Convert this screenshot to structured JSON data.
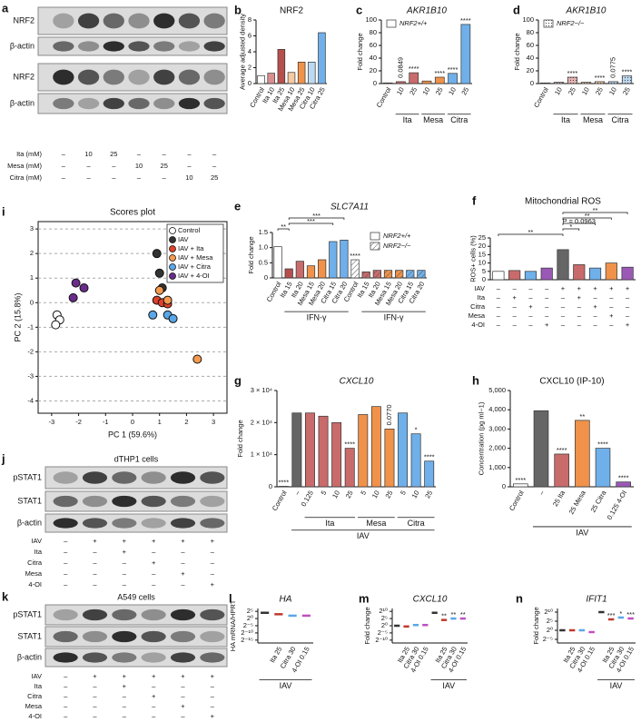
{
  "blots": [
    {
      "panel": "a",
      "rows": [
        "NRF2",
        "β-actin",
        "NRF2",
        "β-actin"
      ],
      "conditions": [
        {
          "name": "Ita (mM)",
          "cells": [
            "–",
            "10",
            "25",
            "–",
            "–",
            "–",
            "–"
          ]
        },
        {
          "name": "Mesa (mM)",
          "cells": [
            "–",
            "–",
            "–",
            "10",
            "25",
            "–",
            "–"
          ]
        },
        {
          "name": "Citra (mM)",
          "cells": [
            "–",
            "–",
            "–",
            "–",
            "–",
            "10",
            "25"
          ]
        }
      ]
    },
    {
      "panel": "j",
      "title": "dTHP1 cells",
      "rows": [
        "pSTAT1",
        "STAT1",
        "β-actin"
      ],
      "conditions": [
        {
          "name": "IAV",
          "cells": [
            "–",
            "+",
            "+",
            "+",
            "+",
            "+"
          ]
        },
        {
          "name": "Ita",
          "cells": [
            "–",
            "–",
            "+",
            "–",
            "–",
            "–"
          ]
        },
        {
          "name": "Citra",
          "cells": [
            "–",
            "–",
            "–",
            "+",
            "–",
            "–"
          ]
        },
        {
          "name": "Mesa",
          "cells": [
            "–",
            "–",
            "–",
            "–",
            "+",
            "–"
          ]
        },
        {
          "name": "4-OI",
          "cells": [
            "–",
            "–",
            "–",
            "–",
            "–",
            "+"
          ]
        }
      ]
    },
    {
      "panel": "k",
      "title": "A549 cells",
      "rows": [
        "pSTAT1",
        "STAT1",
        "β-actin"
      ],
      "conditions": [
        {
          "name": "IAV",
          "cells": [
            "–",
            "+",
            "+",
            "+",
            "+",
            "+"
          ]
        },
        {
          "name": "Ita",
          "cells": [
            "–",
            "–",
            "+",
            "–",
            "–",
            "–"
          ]
        },
        {
          "name": "Citra",
          "cells": [
            "–",
            "–",
            "–",
            "+",
            "–",
            "–"
          ]
        },
        {
          "name": "Mesa",
          "cells": [
            "–",
            "–",
            "–",
            "–",
            "+",
            "–"
          ]
        },
        {
          "name": "4-OI",
          "cells": [
            "–",
            "–",
            "–",
            "–",
            "–",
            "+"
          ]
        }
      ]
    }
  ],
  "chart_data": [
    {
      "panel": "b",
      "type": "bar",
      "title": "NRF2",
      "y_label": "Average adjusted density",
      "categories": [
        "Control",
        "Ita 10",
        "Ita 25",
        "Mesa 10",
        "Mesa 25",
        "Citra 10",
        "Citra 25"
      ],
      "values": [
        1,
        1.3,
        4.3,
        1.4,
        2.7,
        2.7,
        6.4
      ],
      "colors": [
        "#ffffff",
        "#d98f8f",
        "#b5504c",
        "#f7c9a0",
        "#f0924a",
        "#bcd9f2",
        "#6fb0ea"
      ],
      "ylim": [
        0,
        8
      ],
      "yticks": [
        0,
        2,
        4,
        6,
        8
      ]
    },
    {
      "panel": "c",
      "type": "bar",
      "title": "AKR1B10",
      "y_label": "Fold change",
      "categories": [
        "Control",
        "10",
        "25",
        "10",
        "25",
        "10",
        "25"
      ],
      "groups": [
        {
          "label": "Ita",
          "from": 1,
          "to": 2
        },
        {
          "label": "Mesa",
          "from": 3,
          "to": 4
        },
        {
          "label": "Citra",
          "from": 5,
          "to": 6
        }
      ],
      "series": [
        {
          "name": "NRF2+/+",
          "values": [
            1,
            3,
            17,
            4,
            10,
            16,
            93
          ]
        }
      ],
      "colors": [
        "#ffffff",
        "#c96b6b",
        "#c96b6b",
        "#f0924a",
        "#f0924a",
        "#6fb0ea",
        "#6fb0ea"
      ],
      "annotations": [
        null,
        "0.0849",
        "****",
        null,
        "****",
        "****",
        "****"
      ],
      "legend": "top-left",
      "ylim": [
        0,
        100
      ],
      "yticks": [
        0,
        20,
        40,
        60,
        80,
        100
      ]
    },
    {
      "panel": "d",
      "type": "bar",
      "title": "AKR1B10",
      "y_label": "Fold change",
      "categories": [
        "Control",
        "10",
        "25",
        "10",
        "25",
        "10",
        "25"
      ],
      "groups": [
        {
          "label": "Ita",
          "from": 1,
          "to": 2
        },
        {
          "label": "Mesa",
          "from": 3,
          "to": 4
        },
        {
          "label": "Citra",
          "from": 5,
          "to": 6
        }
      ],
      "series": [
        {
          "name": "NRF2−/−",
          "pattern": "dots",
          "values": [
            1,
            2,
            10,
            2,
            3,
            3,
            12
          ]
        }
      ],
      "colors": [
        "#ffffff",
        "#e8b4b4",
        "#e8b4b4",
        "#f7c9a0",
        "#f7c9a0",
        "#bcd9f2",
        "#bcd9f2"
      ],
      "annotations": [
        null,
        null,
        "****",
        null,
        "****",
        "0.0775",
        "****"
      ],
      "legend": "top-left",
      "ylim": [
        0,
        100
      ],
      "yticks": [
        0,
        20,
        40,
        60,
        80,
        100
      ]
    },
    {
      "panel": "i",
      "type": "scatter",
      "title": "Scores plot",
      "x_label": "PC 1 (59.6%)",
      "y_label": "PC 2 (15.8%)",
      "series": [
        {
          "name": "Control",
          "color": "#ffffff",
          "x": [
            -2.8,
            -2.7,
            -2.85
          ],
          "y": [
            -0.5,
            -0.7,
            -0.9
          ]
        },
        {
          "name": "IAV",
          "color": "#333333",
          "x": [
            0.9,
            1.0,
            1.1
          ],
          "y": [
            2.0,
            1.2,
            0.6
          ]
        },
        {
          "name": "IAV + Ita",
          "color": "#e0402a",
          "x": [
            0.9,
            1.1,
            1.3
          ],
          "y": [
            0.1,
            0.0,
            -0.05
          ]
        },
        {
          "name": "IAV + Mesa",
          "color": "#f59a4f",
          "x": [
            1.0,
            1.3,
            2.4
          ],
          "y": [
            0.5,
            0.1,
            -2.3
          ]
        },
        {
          "name": "IAV + Citra",
          "color": "#5aa6e6",
          "x": [
            0.75,
            1.3,
            1.5
          ],
          "y": [
            -0.5,
            -0.5,
            -0.65
          ]
        },
        {
          "name": "IAV + 4-OI",
          "color": "#6a2c8a",
          "x": [
            -2.1,
            -1.8,
            -2.2
          ],
          "y": [
            0.8,
            0.6,
            0.2
          ]
        }
      ],
      "xlim": [
        -3.5,
        3.5
      ],
      "xticks": [
        -3,
        -2,
        -1,
        0,
        1,
        2,
        3
      ],
      "ylim": [
        -4.5,
        3.3
      ],
      "yticks": [
        -4,
        -3,
        -2,
        -1,
        0,
        1,
        2,
        3
      ],
      "grid": true,
      "legend": "top-right"
    },
    {
      "panel": "e",
      "type": "bar",
      "title": "SLC7A11",
      "y_label": "Fold change",
      "categories": [
        "Control",
        "Ita 15",
        "Ita 20",
        "Mesa 15",
        "Mesa 20",
        "Citra 15",
        "Citra 20",
        "Control",
        "Ita 15",
        "Ita 20",
        "Mesa 15",
        "Mesa 20",
        "Citra 15",
        "Citra 20"
      ],
      "series": [
        {
          "name": "NRF2+/+",
          "values": [
            1.03,
            0.3,
            0.55,
            0.4,
            0.6,
            1.2,
            1.25,
            null,
            null,
            null,
            null,
            null,
            null,
            null
          ]
        },
        {
          "name": "NRF2−/−",
          "pattern": "hatch",
          "values": [
            null,
            null,
            null,
            null,
            null,
            null,
            null,
            0.6,
            0.2,
            0.25,
            0.25,
            0.25,
            0.25,
            0.25
          ]
        }
      ],
      "colors": [
        "#ffffff",
        "#b5504c",
        "#c96b6b",
        "#f0924a",
        "#f0924a",
        "#6fb0ea",
        "#6fb0ea",
        "#ffffff",
        "#c96b6b",
        "#c96b6b",
        "#f0924a",
        "#f0924a",
        "#6fb0ea",
        "#6fb0ea"
      ],
      "annotations": [
        null,
        null,
        null,
        null,
        null,
        null,
        null,
        "****",
        null,
        null,
        null,
        null,
        null,
        null
      ],
      "comparisons": [
        {
          "label": "**",
          "from": 0,
          "to": 1
        },
        {
          "label": "***",
          "from": 1,
          "to": 5
        },
        {
          "label": "***",
          "from": 1,
          "to": 6
        }
      ],
      "groups": [
        {
          "label": "IFN-γ",
          "from": 1,
          "to": 6
        },
        {
          "label": "IFN-γ",
          "from": 8,
          "to": 13
        }
      ],
      "legend": "top-right",
      "ylim": [
        0,
        1.5
      ],
      "yticks": [
        0,
        0.5,
        {
          "value": 1,
          "label": "1.0"
        },
        1.5
      ]
    },
    {
      "panel": "f",
      "type": "bar",
      "title": "Mitochondrial ROS",
      "y_label": "ROS+ cells (%)",
      "values": [
        5,
        5.5,
        5,
        7,
        18,
        9,
        7,
        10,
        7.5
      ],
      "colors": [
        "#ffffff",
        "#c96b6b",
        "#6fb0ea",
        "#9b59b6",
        "#666666",
        "#c96b6b",
        "#6fb0ea",
        "#f0924a",
        "#9b59b6"
      ],
      "conditions": [
        {
          "name": "IAV",
          "cells": [
            "–",
            "–",
            "–",
            "–",
            "+",
            "+",
            "+",
            "+",
            "+"
          ]
        },
        {
          "name": "Ita",
          "cells": [
            "–",
            "+",
            "–",
            "–",
            "–",
            "+",
            "–",
            "–",
            "–"
          ]
        },
        {
          "name": "Citra",
          "cells": [
            "–",
            "–",
            "+",
            "–",
            "–",
            "–",
            "+",
            "–",
            "–"
          ]
        },
        {
          "name": "Mesa",
          "cells": [
            "–",
            "–",
            "–",
            "–",
            "–",
            "–",
            "–",
            "+",
            "–"
          ]
        },
        {
          "name": "4-OI",
          "cells": [
            "–",
            "–",
            "–",
            "+",
            "–",
            "–",
            "–",
            "–",
            "+"
          ]
        }
      ],
      "comparisons": [
        {
          "label": "**",
          "from": 0,
          "to": 4
        },
        {
          "label": "*",
          "from": 4,
          "to": 5
        },
        {
          "label": "P = 0.0963",
          "from": 4,
          "to": 6
        },
        {
          "label": "**",
          "from": 4,
          "to": 7
        },
        {
          "label": "**",
          "from": 4,
          "to": 8
        }
      ],
      "ylim": [
        0,
        25
      ],
      "yticks": [
        0,
        5,
        10,
        15,
        20,
        25
      ]
    },
    {
      "panel": "g",
      "type": "bar",
      "title": "CXCL10",
      "y_label": "Fold change",
      "categories": [
        "Control",
        "–",
        "0.125",
        "5",
        "10",
        "25",
        "5",
        "10",
        "25",
        "5",
        "10",
        "25"
      ],
      "values": [
        150,
        23000,
        23000,
        22000,
        20000,
        12000,
        22500,
        25000,
        18000,
        23000,
        16500,
        8000
      ],
      "colors": [
        "#ffffff",
        "#666666",
        "#c96b6b",
        "#c96b6b",
        "#c96b6b",
        "#c96b6b",
        "#f0924a",
        "#f0924a",
        "#f0924a",
        "#6fb0ea",
        "#6fb0ea",
        "#6fb0ea"
      ],
      "annotations": [
        "****",
        null,
        null,
        null,
        null,
        "****",
        null,
        null,
        "0.0770",
        null,
        "*",
        "****"
      ],
      "groups": [
        {
          "label": "Ita",
          "from": 2,
          "to": 5
        },
        {
          "label": "Mesa",
          "from": 6,
          "to": 8
        },
        {
          "label": "Citra",
          "from": 9,
          "to": 11
        },
        {
          "label": "IAV",
          "from": 1,
          "to": 11
        }
      ],
      "ylim": [
        0,
        30000
      ],
      "yticks": [
        0,
        {
          "value": 10000,
          "label": "1 × 10⁴"
        },
        {
          "value": 20000,
          "label": "2 × 10⁴"
        },
        {
          "value": 30000,
          "label": "3 × 10⁴"
        }
      ]
    },
    {
      "panel": "h",
      "type": "bar",
      "title": "CXCL10 (IP-10)",
      "y_label": "Concentration (pg ml−1)",
      "categories": [
        "Control",
        "–",
        "25 Ita",
        "25 Mesa",
        "25 Citra",
        "0.125 4-OI"
      ],
      "values": [
        150,
        3950,
        1700,
        3450,
        2000,
        250
      ],
      "colors": [
        "#ffffff",
        "#666666",
        "#c96b6b",
        "#f0924a",
        "#6fb0ea",
        "#9b59b6"
      ],
      "annotations": [
        "****",
        null,
        "****",
        "**",
        "****",
        "****"
      ],
      "groups": [
        {
          "label": "IAV",
          "from": 1,
          "to": 5
        }
      ],
      "ylim": [
        0,
        5000
      ],
      "yticks": [
        0,
        {
          "value": 1000,
          "label": "1,000"
        },
        {
          "value": 2000,
          "label": "2,000"
        },
        {
          "value": 3000,
          "label": "3,000"
        },
        {
          "value": 4000,
          "label": "4,000"
        },
        {
          "value": 5000,
          "label": "5,000"
        }
      ]
    },
    {
      "panel": "l",
      "type": "dot",
      "title": "HA",
      "y_label": "HA mRNA/HPRT",
      "log_scale": true,
      "categories": [
        null,
        "Ita 25",
        "Citra 30",
        "4-OI 0.15"
      ],
      "values": [
        16,
        8,
        4,
        4
      ],
      "colors": [
        "#333333",
        "#c0392b",
        "#5aa6e6",
        "#c04fc0"
      ],
      "groups": [
        {
          "label": "IAV",
          "from": 0,
          "to": 3
        }
      ],
      "ylim": [
        7.62939453125e-06,
        128
      ],
      "yticks": [
        {
          "value": 3.0517578125e-05,
          "label": "2⁻¹⁵"
        },
        {
          "value": 0.0009765625,
          "label": "2⁻¹⁰"
        },
        {
          "value": 0.03125,
          "label": "2⁻⁵"
        },
        {
          "value": 1,
          "label": "2⁰"
        },
        {
          "value": 32,
          "label": "2⁵"
        }
      ]
    },
    {
      "panel": "m",
      "type": "dot",
      "title": "CXCL10",
      "y_label": "Fold change",
      "log_scale": true,
      "categories": [
        null,
        "Ita 25",
        "Citra 30",
        "4-OI 0.15",
        null,
        "Ita 25",
        "Citra 30",
        "4-OI 0.15"
      ],
      "values": [
        1,
        0.7,
        1.4,
        1.4,
        512,
        16,
        32,
        32
      ],
      "colors": [
        "#333333",
        "#c0392b",
        "#5aa6e6",
        "#c04fc0",
        "#333333",
        "#c0392b",
        "#5aa6e6",
        "#c04fc0"
      ],
      "annotations": [
        null,
        null,
        null,
        null,
        null,
        "**",
        "**",
        "**"
      ],
      "groups": [
        {
          "label": "IAV",
          "from": 4,
          "to": 7
        }
      ],
      "ylim": [
        0.000244140625,
        4096
      ],
      "yticks": [
        {
          "value": 0.0009765625,
          "label": "2⁻¹⁰"
        },
        {
          "value": 0.03125,
          "label": "2⁻⁵"
        },
        {
          "value": 1,
          "label": "2⁰"
        },
        {
          "value": 32,
          "label": "2⁵"
        },
        {
          "value": 1024,
          "label": "2¹⁰"
        }
      ]
    },
    {
      "panel": "n",
      "type": "dot",
      "title": "IFIT1",
      "y_label": "Fold change",
      "log_scale": true,
      "categories": [
        null,
        "Ita 25",
        "Citra 30",
        "4-OI 0.15",
        null,
        "Ita 25",
        "Citra 30",
        "4-OI 0.15"
      ],
      "values": [
        1,
        1,
        1,
        0.5,
        1024,
        64,
        128,
        90
      ],
      "colors": [
        "#333333",
        "#c0392b",
        "#5aa6e6",
        "#c04fc0",
        "#333333",
        "#c0392b",
        "#5aa6e6",
        "#c04fc0"
      ],
      "annotations": [
        null,
        null,
        null,
        null,
        null,
        "***",
        "*",
        "***"
      ],
      "groups": [
        {
          "label": "IAV",
          "from": 4,
          "to": 7
        }
      ],
      "ylim": [
        0.0078125,
        4096
      ],
      "yticks": [
        {
          "value": 0.03125,
          "label": "2⁻⁵"
        },
        {
          "value": 1,
          "label": "2⁰"
        },
        {
          "value": 32,
          "label": "2⁵"
        },
        {
          "value": 1024,
          "label": "2¹⁰"
        }
      ]
    }
  ]
}
